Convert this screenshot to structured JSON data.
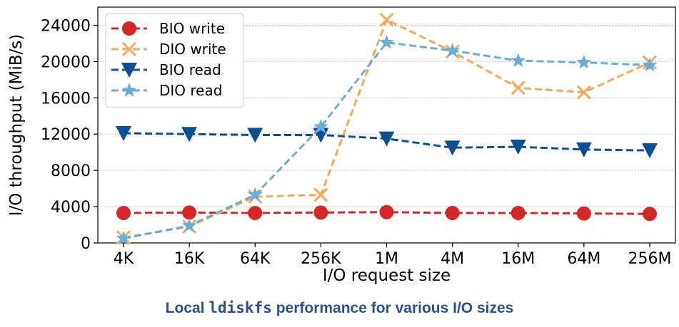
{
  "caption": {
    "prefix": "Local ",
    "code": "ldiskfs",
    "suffix": " performance for various I/O sizes",
    "color": "#2e4f8f"
  },
  "chart_data": {
    "type": "line",
    "xlabel": "I/O request size",
    "ylabel": "I/O throughput (MiB/s)",
    "categories": [
      "4K",
      "16K",
      "64K",
      "256K",
      "1M",
      "4M",
      "16M",
      "64M",
      "256M"
    ],
    "ylim": [
      0,
      26000
    ],
    "yticks": [
      0,
      4000,
      8000,
      12000,
      16000,
      20000,
      24000
    ],
    "grid": "horizontal dotted",
    "legend": "top-left",
    "series": [
      {
        "name": "BIO write",
        "color": "#d62728",
        "marker": "circle",
        "values": [
          3300,
          3350,
          3300,
          3350,
          3400,
          3300,
          3300,
          3250,
          3200
        ]
      },
      {
        "name": "DIO write",
        "color": "#f4a95a",
        "marker": "x",
        "values": [
          600,
          1800,
          5100,
          5300,
          24600,
          21100,
          17100,
          16600,
          19900
        ]
      },
      {
        "name": "BIO read",
        "color": "#0b4f96",
        "marker": "triangle-down",
        "values": [
          12100,
          12000,
          11900,
          11900,
          11500,
          10500,
          10600,
          10300,
          10200
        ]
      },
      {
        "name": "DIO read",
        "color": "#6aaed6",
        "marker": "star",
        "values": [
          500,
          1900,
          5300,
          12800,
          22100,
          21200,
          20100,
          19900,
          19600
        ]
      }
    ]
  }
}
